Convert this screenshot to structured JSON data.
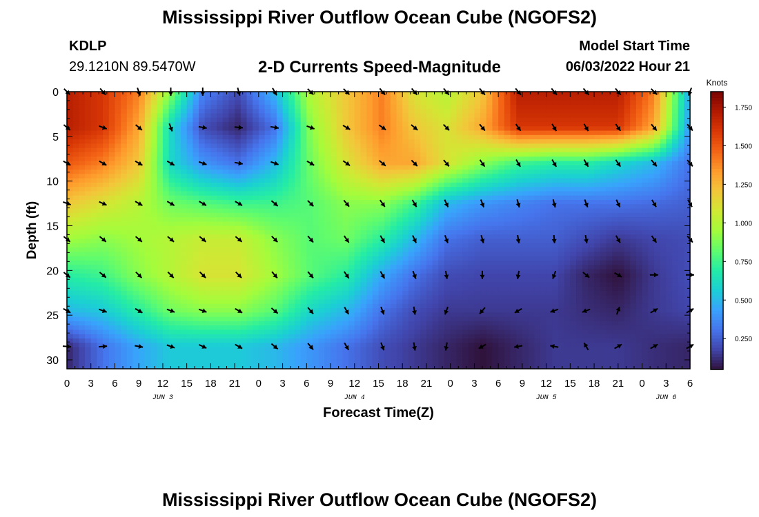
{
  "header": {
    "title": "Mississippi River Outflow Ocean Cube (NGOFS2)",
    "station_id": "KDLP",
    "coords": "29.1210N  89.5470W",
    "subtitle": "2-D Currents Speed-Magnitude",
    "model_label": "Model Start Time",
    "model_time": "06/03/2022 Hour 21"
  },
  "footer": {
    "title": "Mississippi River Outflow Ocean Cube (NGOFS2)"
  },
  "chart_data": {
    "type": "heatmap",
    "title": "2-D Currents Speed-Magnitude",
    "xlabel": "Forecast Time(Z)",
    "ylabel": "Depth (ft)",
    "x_tick_labels": [
      "0",
      "3",
      "6",
      "9",
      "12",
      "15",
      "18",
      "21",
      "0",
      "3",
      "6",
      "9",
      "12",
      "15",
      "18",
      "21",
      "0",
      "3",
      "6",
      "9",
      "12",
      "15",
      "18",
      "21",
      "0",
      "3",
      "6"
    ],
    "x_range_hours": [
      0,
      78
    ],
    "day_labels": [
      {
        "label": "JUN 3",
        "hour": 12
      },
      {
        "label": "JUN 4",
        "hour": 36
      },
      {
        "label": "JUN 5",
        "hour": 60
      },
      {
        "label": "JUN 6",
        "hour": 75
      }
    ],
    "ylim": [
      0,
      31
    ],
    "y_ticks": [
      0,
      5,
      10,
      15,
      20,
      25,
      30
    ],
    "colorbar": {
      "unit": "Knots",
      "range": [
        0.05,
        1.85
      ],
      "ticks": [
        "0.250",
        "0.500",
        "0.750",
        "1.000",
        "1.250",
        "1.500",
        "1.750"
      ],
      "tick_values": [
        0.25,
        0.5,
        0.75,
        1.0,
        1.25,
        1.5,
        1.75
      ]
    },
    "colormap": [
      "#30123b",
      "#4145ab",
      "#4675ed",
      "#39a2fc",
      "#1bcfd4",
      "#24eca6",
      "#61fc6c",
      "#a4fc3b",
      "#d1e834",
      "#f3c63a",
      "#fe9b2d",
      "#f36315",
      "#d93806",
      "#b11901",
      "#7a0403"
    ],
    "vector_columns_hours": [
      0,
      4.5,
      9,
      13,
      17,
      21.5,
      26,
      30.5,
      35,
      39.5,
      43.5,
      47.5,
      52,
      56.5,
      61,
      65,
      69,
      73.5,
      78
    ],
    "vector_rows_depth": [
      0,
      4,
      8,
      12.5,
      16.5,
      20.5,
      24.5,
      28.5
    ],
    "speed_grid_knots": [
      [
        1.7,
        1.6,
        1.4,
        0.9,
        0.35,
        0.2,
        0.5,
        1.0,
        1.2,
        1.4,
        1.1,
        1.0,
        1.2,
        1.7,
        1.7,
        1.7,
        1.7,
        1.4,
        0.45
      ],
      [
        1.7,
        1.6,
        1.3,
        0.6,
        0.2,
        0.1,
        0.3,
        0.9,
        1.2,
        1.4,
        1.2,
        1.1,
        1.3,
        1.6,
        1.6,
        1.6,
        1.6,
        1.3,
        0.4
      ],
      [
        1.5,
        1.4,
        1.2,
        0.6,
        0.4,
        0.3,
        0.5,
        0.85,
        1.1,
        1.3,
        1.3,
        1.1,
        0.9,
        0.75,
        0.7,
        0.7,
        0.6,
        0.5,
        0.3
      ],
      [
        1.2,
        1.1,
        1.0,
        0.85,
        0.8,
        0.75,
        0.75,
        0.8,
        0.9,
        0.9,
        0.75,
        0.5,
        0.4,
        0.35,
        0.3,
        0.3,
        0.3,
        0.28,
        0.25
      ],
      [
        0.95,
        0.9,
        0.95,
        1.0,
        1.05,
        1.05,
        0.9,
        0.8,
        0.85,
        0.7,
        0.5,
        0.3,
        0.25,
        0.25,
        0.25,
        0.2,
        0.15,
        0.18,
        0.2
      ],
      [
        0.7,
        0.75,
        0.9,
        1.0,
        1.1,
        1.1,
        0.95,
        0.8,
        0.7,
        0.45,
        0.3,
        0.2,
        0.18,
        0.18,
        0.18,
        0.1,
        0.05,
        0.15,
        0.2
      ],
      [
        0.5,
        0.55,
        0.7,
        0.85,
        0.9,
        0.9,
        0.8,
        0.6,
        0.5,
        0.3,
        0.2,
        0.15,
        0.15,
        0.15,
        0.15,
        0.12,
        0.1,
        0.15,
        0.18
      ],
      [
        0.1,
        0.3,
        0.45,
        0.55,
        0.55,
        0.55,
        0.5,
        0.4,
        0.3,
        0.2,
        0.15,
        0.1,
        0.05,
        0.1,
        0.15,
        0.15,
        0.15,
        0.12,
        0.1
      ]
    ],
    "vector_directions_deg": [
      [
        135,
        140,
        160,
        180,
        180,
        165,
        150,
        135,
        135,
        140,
        140,
        140,
        140,
        140,
        140,
        140,
        140,
        135,
        200
      ],
      [
        130,
        110,
        130,
        160,
        100,
        95,
        100,
        110,
        120,
        125,
        130,
        135,
        140,
        145,
        150,
        150,
        145,
        140,
        140
      ],
      [
        120,
        120,
        120,
        120,
        110,
        100,
        110,
        120,
        125,
        130,
        135,
        140,
        145,
        150,
        150,
        150,
        145,
        140,
        140
      ],
      [
        110,
        115,
        120,
        120,
        120,
        120,
        130,
        135,
        140,
        145,
        150,
        155,
        160,
        165,
        165,
        160,
        155,
        150,
        150
      ],
      [
        130,
        130,
        130,
        130,
        130,
        130,
        135,
        140,
        145,
        150,
        155,
        160,
        165,
        170,
        175,
        170,
        150,
        145,
        140
      ],
      [
        130,
        130,
        135,
        135,
        135,
        135,
        140,
        140,
        145,
        150,
        160,
        170,
        180,
        190,
        200,
        130,
        120,
        90,
        90
      ],
      [
        120,
        110,
        120,
        110,
        110,
        120,
        130,
        140,
        150,
        160,
        170,
        200,
        220,
        240,
        250,
        250,
        20,
        60,
        60
      ],
      [
        95,
        85,
        100,
        110,
        115,
        120,
        130,
        140,
        150,
        160,
        170,
        190,
        240,
        260,
        280,
        330,
        60,
        60,
        60
      ]
    ]
  }
}
